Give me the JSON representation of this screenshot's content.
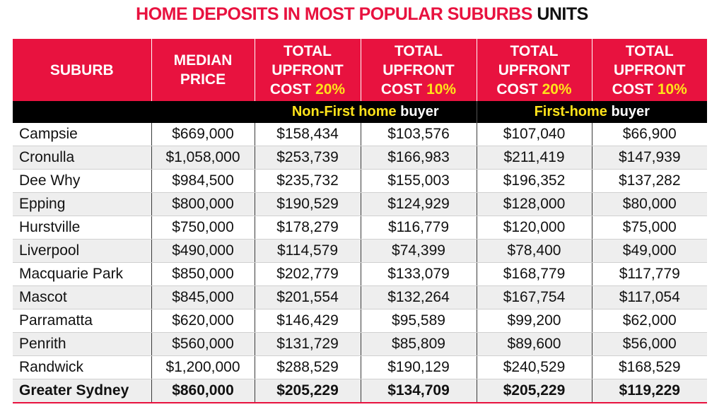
{
  "title": {
    "main": "HOME DEPOSITS IN MOST POPULAR SUBURBS",
    "suffix": "UNITS"
  },
  "columns": [
    {
      "line1": "SUBURB",
      "line2": "",
      "line3": "",
      "pct": ""
    },
    {
      "line1": "MEDIAN",
      "line2": "PRICE",
      "line3": "",
      "pct": ""
    },
    {
      "line1": "TOTAL",
      "line2": "UPFRONT",
      "line3": "COST",
      "pct": "20%"
    },
    {
      "line1": "TOTAL",
      "line2": "UPFRONT",
      "line3": "COST",
      "pct": "10%"
    },
    {
      "line1": "TOTAL",
      "line2": "UPFRONT",
      "line3": "COST",
      "pct": "20%"
    },
    {
      "line1": "TOTAL",
      "line2": "UPFRONT",
      "line3": "COST",
      "pct": "10%"
    }
  ],
  "groups": [
    {
      "highlight": "Non-First home",
      "rest": " buyer"
    },
    {
      "highlight": "First-home",
      "rest": " buyer"
    }
  ],
  "rows": [
    [
      "Campsie",
      "$669,000",
      "$158,434",
      "$103,576",
      "$107,040",
      "$66,900"
    ],
    [
      "Cronulla",
      "$1,058,000",
      "$253,739",
      "$166,983",
      "$211,419",
      "$147,939"
    ],
    [
      "Dee Why",
      "$984,500",
      "$235,732",
      "$155,003",
      "$196,352",
      "$137,282"
    ],
    [
      "Epping",
      "$800,000",
      "$190,529",
      "$124,929",
      "$128,000",
      "$80,000"
    ],
    [
      "Hurstville",
      "$750,000",
      "$178,279",
      "$116,779",
      "$120,000",
      "$75,000"
    ],
    [
      "Liverpool",
      "$490,000",
      "$114,579",
      "$74,399",
      "$78,400",
      "$49,000"
    ],
    [
      "Macquarie Park",
      "$850,000",
      "$202,779",
      "$133,079",
      "$168,779",
      "$117,779"
    ],
    [
      "Mascot",
      "$845,000",
      "$201,554",
      "$132,264",
      "$167,754",
      "$117,054"
    ],
    [
      "Parramatta",
      "$620,000",
      "$146,429",
      "$95,589",
      "$99,200",
      "$62,000"
    ],
    [
      "Penrith",
      "$560,000",
      "$131,729",
      "$85,809",
      "$89,600",
      "$56,000"
    ],
    [
      "Randwick",
      "$1,200,000",
      "$288,529",
      "$190,129",
      "$240,529",
      "$168,529"
    ]
  ],
  "total": [
    "Greater Sydney",
    "$860,000",
    "$205,229",
    "$134,709",
    "$205,229",
    "$119,229"
  ],
  "colors": {
    "accent": "#e8123f",
    "highlight": "#ffe31a",
    "band": "#000000",
    "stripe": "#eeeeee"
  }
}
